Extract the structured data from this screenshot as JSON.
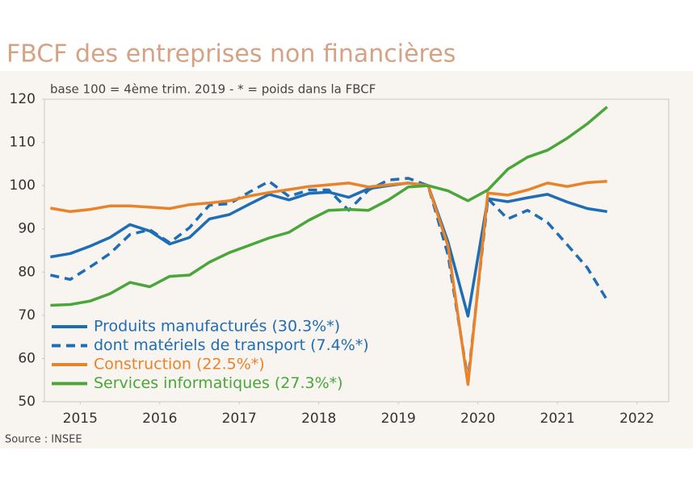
{
  "chart_data": {
    "type": "line",
    "title": "FBCF des entreprises non financières",
    "subtitle": "base 100 = 4ème trim. 2019  -  * = poids dans la FBCF",
    "source": "Source :  INSEE",
    "x": [
      2015.125,
      2015.375,
      2015.625,
      2015.875,
      2016.125,
      2016.375,
      2016.625,
      2016.875,
      2017.125,
      2017.375,
      2017.625,
      2017.875,
      2018.125,
      2018.375,
      2018.625,
      2018.875,
      2019.125,
      2019.375,
      2019.625,
      2019.875,
      2020.125,
      2020.375,
      2020.625,
      2020.875,
      2021.125,
      2021.375,
      2021.625,
      2021.875,
      2022.125
    ],
    "series": [
      {
        "name": "Produits manufacturés (30.3%*)",
        "color": "#1f6db4",
        "line_style": "solid",
        "values": [
          83.5,
          84.3,
          86,
          88,
          91,
          89.5,
          86.5,
          88,
          92.3,
          93.3,
          95.7,
          98,
          96.7,
          98.2,
          98.5,
          97.3,
          99.3,
          100,
          100.6,
          100,
          87,
          69.8,
          97,
          96.3,
          97.2,
          98,
          96.2,
          94.7,
          94
        ]
      },
      {
        "name": "dont matériels de transport (7.4%*)",
        "color": "#1f6db4",
        "line_style": "dashed",
        "values": [
          79.3,
          78.3,
          81.2,
          84.3,
          88.7,
          89.8,
          86.8,
          90.3,
          95.5,
          95.8,
          98.5,
          101,
          97.5,
          99,
          99,
          94.3,
          99,
          101.3,
          101.7,
          100,
          84,
          55,
          97,
          92.3,
          94.3,
          91.5,
          86.3,
          81,
          73.5
        ]
      },
      {
        "name": "Construction (22.5%*)",
        "color": "#e8832a",
        "line_style": "solid",
        "values": [
          94.8,
          94,
          94.5,
          95.3,
          95.3,
          95,
          94.7,
          95.6,
          96,
          96.5,
          97.6,
          98.4,
          99.1,
          99.8,
          100.2,
          100.6,
          99.7,
          100.2,
          100.6,
          100,
          86,
          54,
          98.3,
          97.8,
          99,
          100.6,
          99.8,
          100.7,
          101
        ]
      },
      {
        "name": "Services informatiques (27.3%*)",
        "color": "#4aa63a",
        "line_style": "solid",
        "values": [
          72.3,
          72.5,
          73.3,
          75,
          77.6,
          76.6,
          79,
          79.3,
          82.3,
          84.5,
          86.2,
          87.9,
          89.2,
          92,
          94.3,
          94.5,
          94.3,
          96.7,
          99.7,
          100,
          98.8,
          96.5,
          99,
          103.8,
          106.6,
          108.2,
          111,
          114.3,
          118.2
        ]
      }
    ],
    "xlim": [
      2015.05,
      2022.9
    ],
    "xticks": [
      {
        "value": 2015.5,
        "label": "2015"
      },
      {
        "value": 2016.5,
        "label": "2016"
      },
      {
        "value": 2017.5,
        "label": "2017"
      },
      {
        "value": 2018.5,
        "label": "2018"
      },
      {
        "value": 2019.5,
        "label": "2019"
      },
      {
        "value": 2020.5,
        "label": "2020"
      },
      {
        "value": 2021.5,
        "label": "2021"
      },
      {
        "value": 2022.5,
        "label": "2022"
      }
    ],
    "ylim": [
      50,
      120
    ],
    "yticks": [
      50,
      60,
      70,
      80,
      90,
      100,
      110,
      120
    ],
    "legend": "lower left"
  }
}
